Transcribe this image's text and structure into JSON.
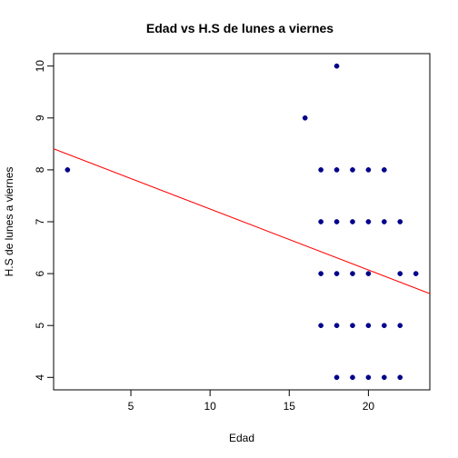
{
  "chart_data": {
    "type": "scatter",
    "title": "Edad vs H.S de lunes a viernes",
    "xlabel": "Edad",
    "ylabel": "H.S de lunes a viernes",
    "xlim": [
      0.12,
      23.88
    ],
    "ylim": [
      3.76,
      10.24
    ],
    "x_ticks": [
      5,
      10,
      15,
      20
    ],
    "y_ticks": [
      4,
      5,
      6,
      7,
      8,
      9,
      10
    ],
    "grid": false,
    "point_color": "#00008B",
    "line_color": "#FF0000",
    "points": [
      {
        "x": 1,
        "y": 8
      },
      {
        "x": 16,
        "y": 9
      },
      {
        "x": 18,
        "y": 10
      },
      {
        "x": 17,
        "y": 8
      },
      {
        "x": 18,
        "y": 8
      },
      {
        "x": 19,
        "y": 8
      },
      {
        "x": 20,
        "y": 8
      },
      {
        "x": 21,
        "y": 8
      },
      {
        "x": 17,
        "y": 7
      },
      {
        "x": 18,
        "y": 7
      },
      {
        "x": 19,
        "y": 7
      },
      {
        "x": 20,
        "y": 7
      },
      {
        "x": 21,
        "y": 7
      },
      {
        "x": 22,
        "y": 7
      },
      {
        "x": 17,
        "y": 6
      },
      {
        "x": 18,
        "y": 6
      },
      {
        "x": 19,
        "y": 6
      },
      {
        "x": 20,
        "y": 6
      },
      {
        "x": 22,
        "y": 6
      },
      {
        "x": 23,
        "y": 6
      },
      {
        "x": 17,
        "y": 5
      },
      {
        "x": 18,
        "y": 5
      },
      {
        "x": 19,
        "y": 5
      },
      {
        "x": 20,
        "y": 5
      },
      {
        "x": 21,
        "y": 5
      },
      {
        "x": 22,
        "y": 5
      },
      {
        "x": 18,
        "y": 4
      },
      {
        "x": 19,
        "y": 4
      },
      {
        "x": 20,
        "y": 4
      },
      {
        "x": 21,
        "y": 4
      },
      {
        "x": 22,
        "y": 4
      }
    ],
    "regression_line": {
      "intercept": 8.42,
      "slope": -0.1175
    }
  }
}
